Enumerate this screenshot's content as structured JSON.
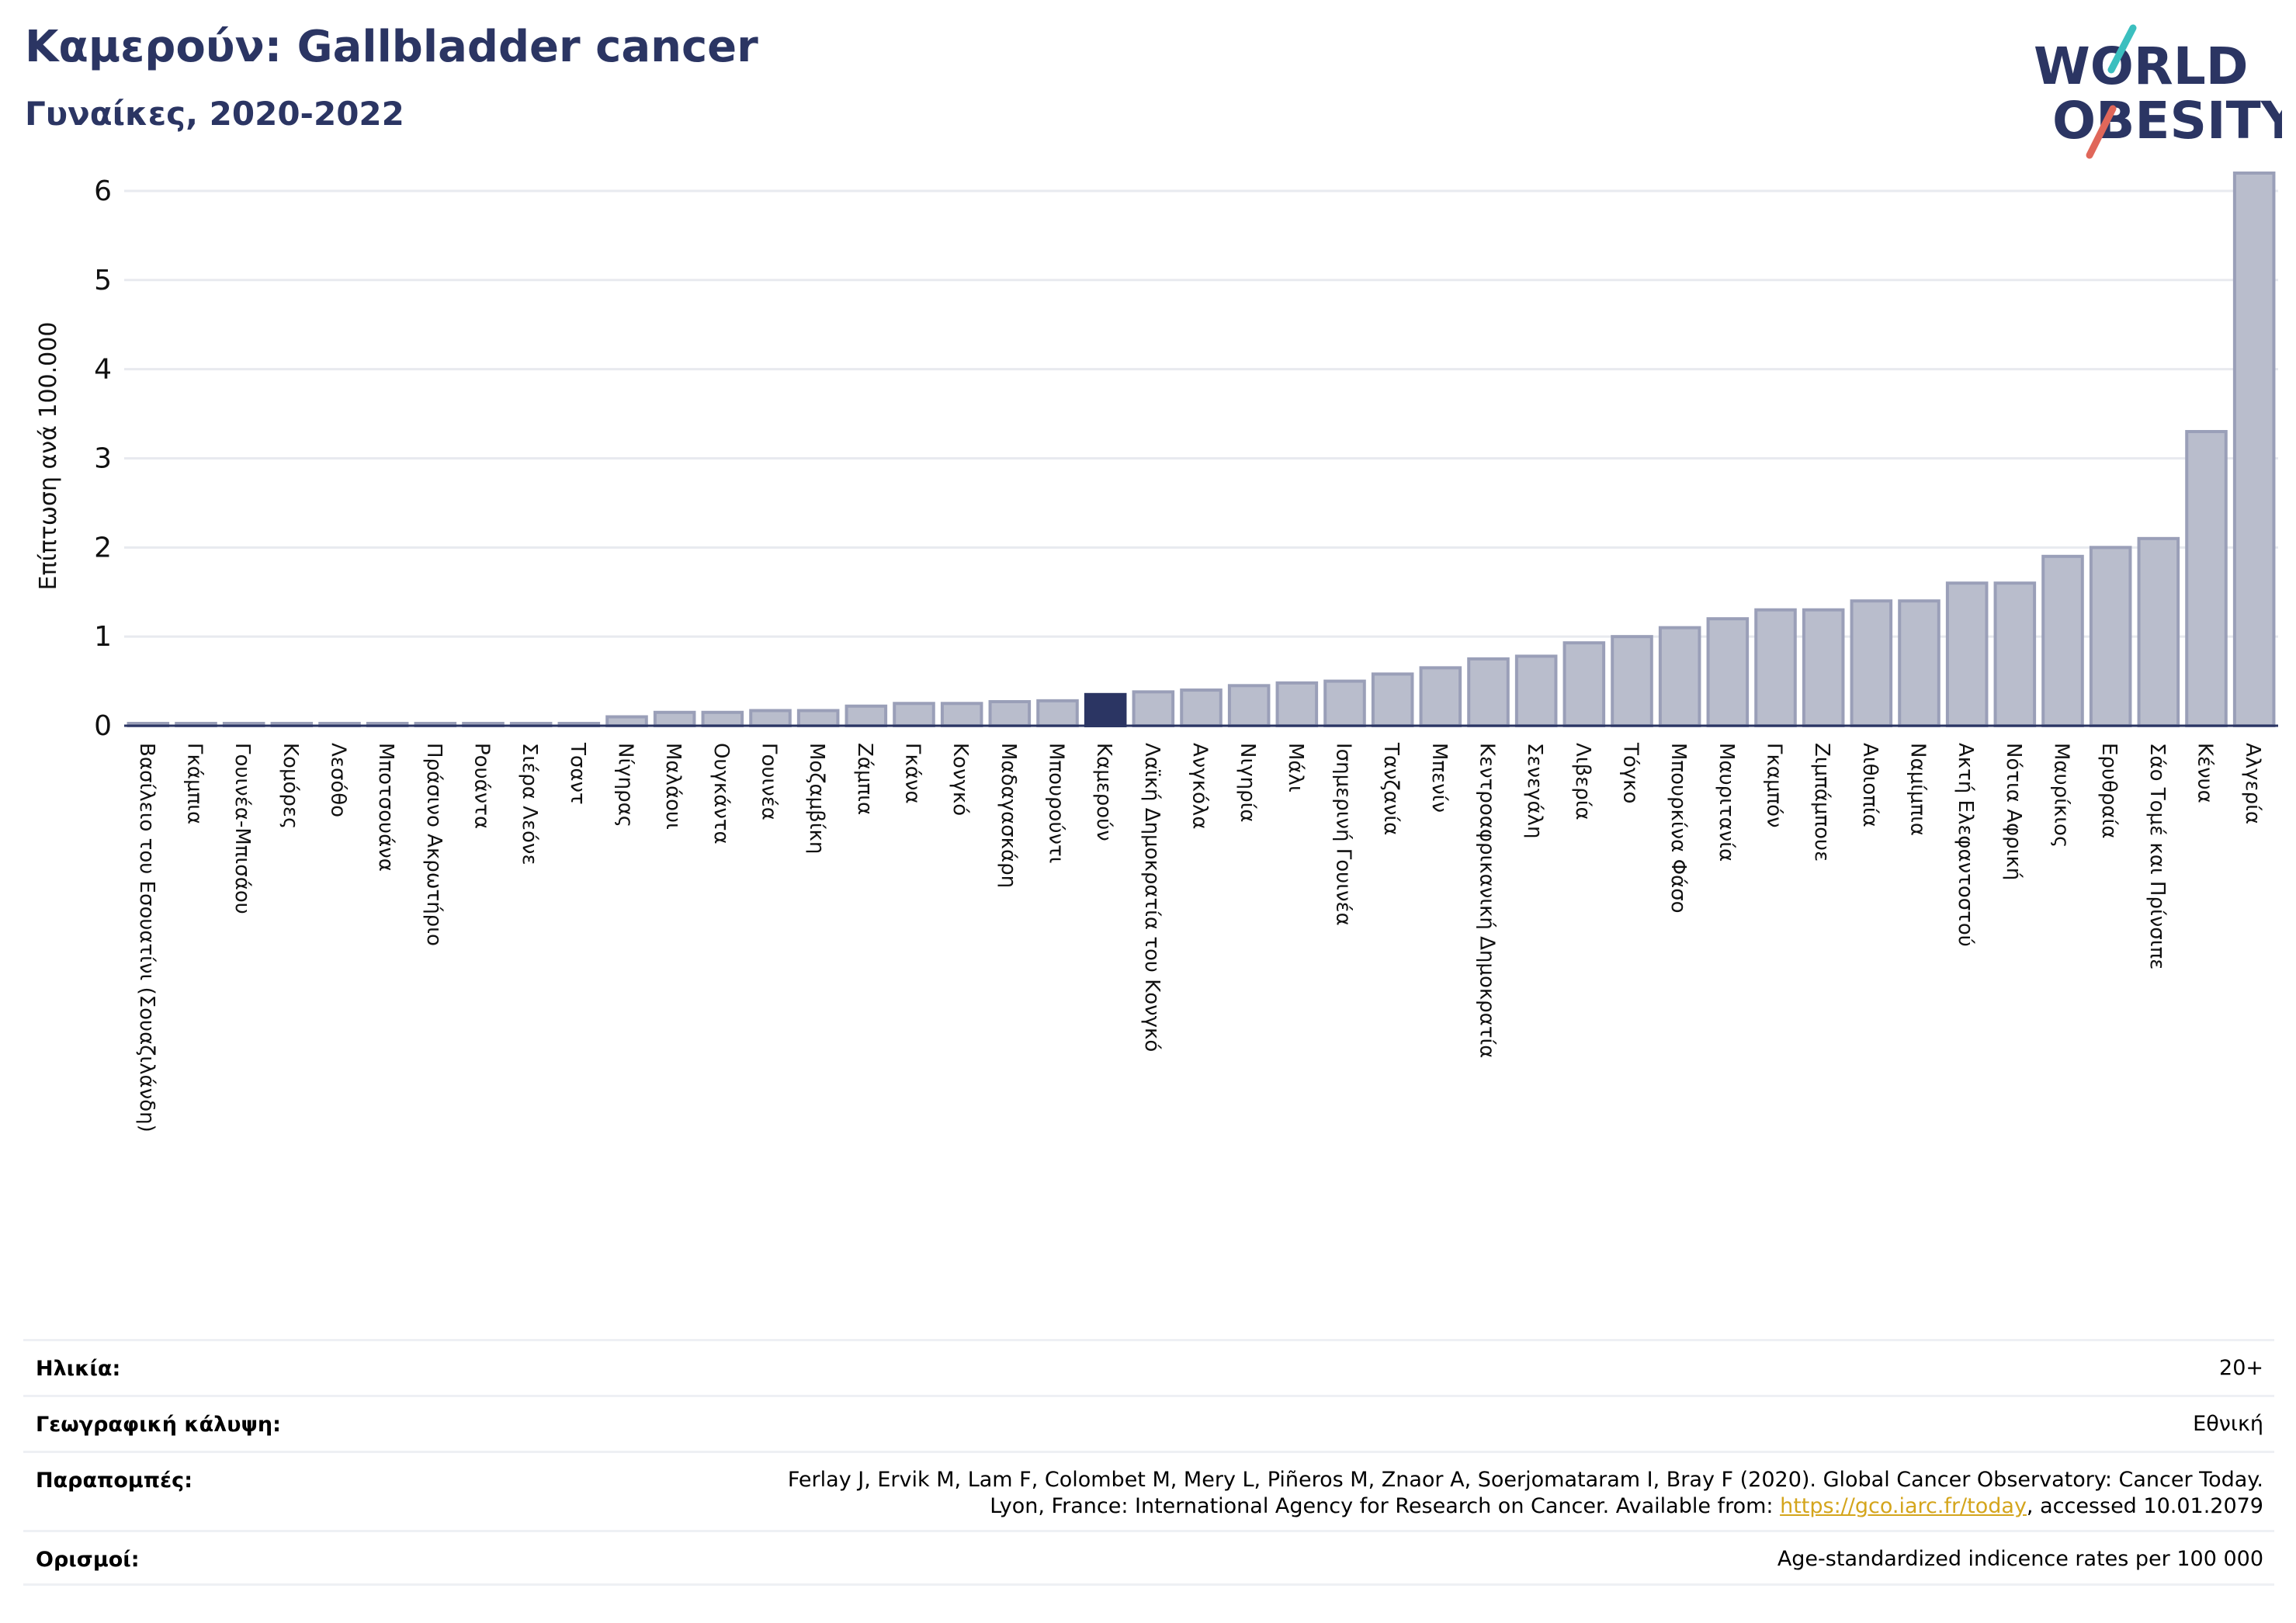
{
  "header": {
    "title": "Καμερούν: Gallbladder cancer",
    "subtitle": "Γυναίκες, 2020-2022"
  },
  "logo": {
    "line1": "WORLD",
    "line2": "OBESITY",
    "colors": {
      "text": "#2b3563",
      "slash_teal": "#3bbfbf",
      "slash_red": "#e0675a"
    }
  },
  "chart_data": {
    "type": "bar",
    "ylabel": "Επίπτωση ανά 100.000",
    "ylim": [
      0,
      6.4
    ],
    "yticks": [
      0,
      1,
      2,
      3,
      4,
      5,
      6
    ],
    "grid": true,
    "highlight": "Καμερούν",
    "colors": {
      "bar": "#b9bdcc",
      "bar_edge": "#9a9fb8",
      "highlight": "#2b3563"
    },
    "categories": [
      "Βασίλειο του Εσουατίνι (Σουαζιλάνδη)",
      "Γκάμπια",
      "Γουινέα-Μπισάου",
      "Κομόρες",
      "Λεσόθο",
      "Μποτσουάνα",
      "Πράσινο Ακρωτήριο",
      "Ρουάντα",
      "Σιέρα Λεόνε",
      "Τσαντ",
      "Νίγηρας",
      "Μαλάουι",
      "Ουγκάντα",
      "Γουινέα",
      "Μοζαμβίκη",
      "Ζάμπια",
      "Γκάνα",
      "Κονγκό",
      "Μαδαγασκάρη",
      "Μπουρούντι",
      "Καμερούν",
      "Λαϊκή Δημοκρατία του Κονγκό",
      "Ανγκόλα",
      "Νιγηρία",
      "Μάλι",
      "Ισημερινή Γουινέα",
      "Τανζανία",
      "Μπενίν",
      "Κεντροαφρικανική Δημοκρατία",
      "Σενεγάλη",
      "Λιβερία",
      "Τόγκο",
      "Μπουρκίνα Φάσο",
      "Μαυριτανία",
      "Γκαμπόν",
      "Ζιμπάμπουε",
      "Αιθιοπία",
      "Ναμίμπια",
      "Ακτή Ελεφαντοστού",
      "Νότια Αφρική",
      "Μαυρίκιος",
      "Ερυθραία",
      "Σάο Τομέ και Πρίνσιπε",
      "Κένυα",
      "Αλγερία"
    ],
    "values": [
      0.02,
      0.02,
      0.02,
      0.02,
      0.02,
      0.02,
      0.02,
      0.02,
      0.02,
      0.02,
      0.1,
      0.15,
      0.15,
      0.17,
      0.17,
      0.22,
      0.25,
      0.25,
      0.27,
      0.28,
      0.35,
      0.38,
      0.4,
      0.45,
      0.48,
      0.5,
      0.58,
      0.65,
      0.75,
      0.78,
      0.93,
      1.0,
      1.1,
      1.2,
      1.3,
      1.3,
      1.4,
      1.4,
      1.6,
      1.6,
      1.9,
      2.0,
      2.1,
      3.3,
      6.2
    ]
  },
  "meta": {
    "age_label": "Ηλικία:",
    "age_value": "20+",
    "coverage_label": "Γεωγραφική κάλυψη:",
    "coverage_value": "Εθνική",
    "refs_label": "Παραπομπές:",
    "refs_line1": "Ferlay J, Ervik M, Lam F, Colombet M, Mery L, Piñeros M, Znaor A, Soerjomataram I, Bray F (2020). Global Cancer Observatory: Cancer Today.",
    "refs_line2_prefix": "Lyon, France: International Agency for Research on Cancer. Available from: ",
    "refs_link": "https://gco.iarc.fr/today",
    "refs_line2_suffix": ", accessed 10.01.2079",
    "defs_label": "Ορισμοί:",
    "defs_value": "Age-standardized indicence rates per 100 000"
  }
}
